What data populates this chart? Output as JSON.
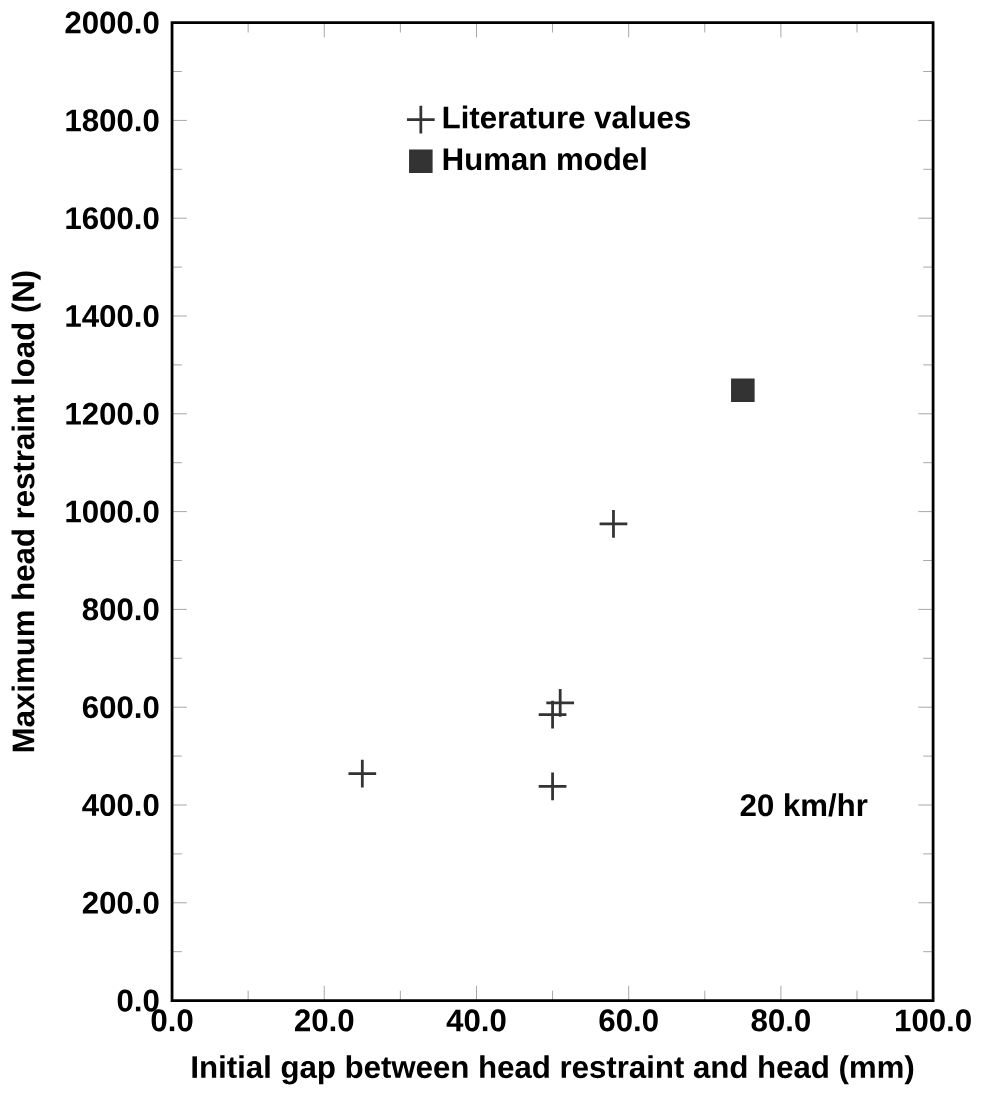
{
  "chart_data": {
    "type": "scatter",
    "xlabel": "Initial gap between head restraint and head (mm)",
    "ylabel": "Maximum head restraint load (N)",
    "xlim": [
      0,
      100
    ],
    "ylim": [
      0,
      2000
    ],
    "xticks": [
      {
        "value": 0,
        "label": "0.0"
      },
      {
        "value": 20,
        "label": "20.0"
      },
      {
        "value": 40,
        "label": "40.0"
      },
      {
        "value": 60,
        "label": "60.0"
      },
      {
        "value": 80,
        "label": "80.0"
      },
      {
        "value": 100,
        "label": "100.0"
      }
    ],
    "yticks": [
      {
        "value": 0,
        "label": "0.0"
      },
      {
        "value": 200,
        "label": "200.0"
      },
      {
        "value": 400,
        "label": "400.0"
      },
      {
        "value": 600,
        "label": "600.0"
      },
      {
        "value": 800,
        "label": "800.0"
      },
      {
        "value": 1000,
        "label": "1000.0"
      },
      {
        "value": 1200,
        "label": "1200.0"
      },
      {
        "value": 1400,
        "label": "1400.0"
      },
      {
        "value": 1600,
        "label": "1600.0"
      },
      {
        "value": 1800,
        "label": "1800.0"
      },
      {
        "value": 2000,
        "label": "2000.0"
      }
    ],
    "series": [
      {
        "name": "Literature values",
        "color": "#333333",
        "marker": "cross",
        "x": [
          25,
          50,
          50,
          51,
          58
        ],
        "values": [
          464,
          438,
          585,
          609,
          975
        ]
      },
      {
        "name": "Human model",
        "color": "#333333",
        "marker": "square",
        "x": [
          75
        ],
        "values": [
          1248
        ]
      }
    ],
    "legend": "top",
    "grid": false,
    "annotations": [
      "20 km/hr"
    ]
  }
}
